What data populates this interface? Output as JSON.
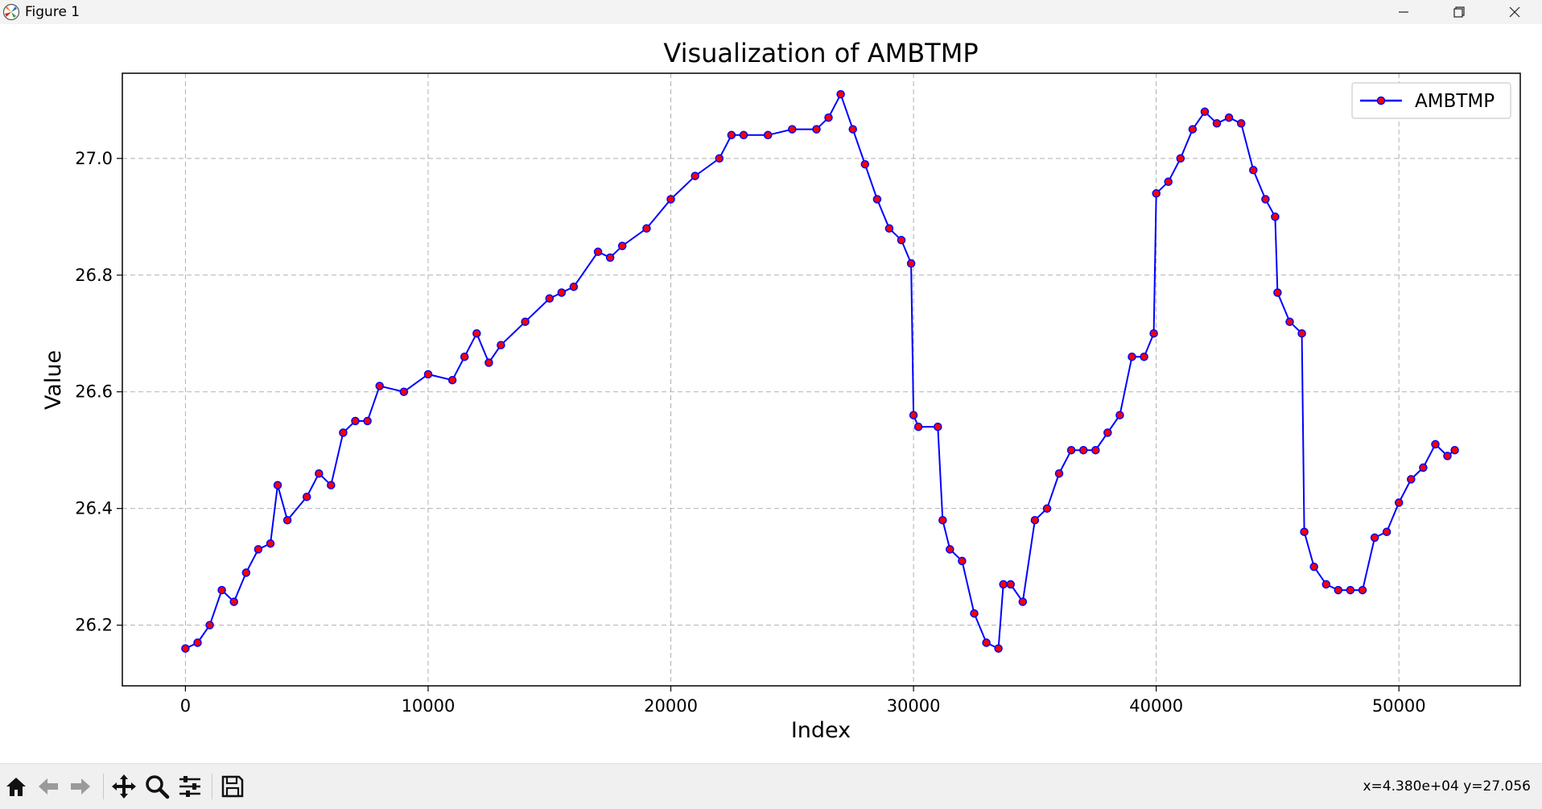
{
  "window": {
    "title": "Figure 1",
    "minimize_icon": "minimize-icon",
    "maximize_icon": "restore-icon",
    "close_icon": "close-icon"
  },
  "toolbar": {
    "buttons": [
      "home-icon",
      "back-arrow-icon",
      "forward-arrow-icon",
      "pan-icon",
      "zoom-icon",
      "configure-subplots-icon",
      "save-icon"
    ],
    "coords": "x=4.380e+04 y=27.056"
  },
  "colors": {
    "line": "#0000ff",
    "marker_face": "#ff0000",
    "marker_edge": "#0000ff",
    "grid": "#b0b0b0"
  },
  "chart_data": {
    "type": "line",
    "title": "Visualization of AMBTMP",
    "xlabel": "Index",
    "ylabel": "Value",
    "xlim": [
      -2600,
      55000
    ],
    "ylim": [
      26.096,
      27.146
    ],
    "xticks": [
      0,
      10000,
      20000,
      30000,
      40000,
      50000
    ],
    "xtick_labels": [
      "0",
      "10000",
      "20000",
      "30000",
      "40000",
      "50000"
    ],
    "yticks": [
      26.2,
      26.4,
      26.6,
      26.8,
      27.0
    ],
    "ytick_labels": [
      "26.2",
      "26.4",
      "26.6",
      "26.8",
      "27.0"
    ],
    "grid": true,
    "legend": {
      "position": "top-right",
      "entries": [
        "AMBTMP"
      ]
    },
    "series": [
      {
        "name": "AMBTMP",
        "x": [
          0,
          500,
          1000,
          1500,
          2000,
          2500,
          3000,
          3500,
          3800,
          4200,
          5000,
          5500,
          6000,
          6500,
          7000,
          7500,
          8000,
          9000,
          10000,
          11000,
          11500,
          12000,
          12500,
          13000,
          14000,
          15000,
          15500,
          16000,
          17000,
          17500,
          18000,
          19000,
          20000,
          21000,
          22000,
          22500,
          23000,
          24000,
          25000,
          26000,
          26500,
          27000,
          27500,
          28000,
          28500,
          29000,
          29500,
          29900,
          30000,
          30200,
          31000,
          31200,
          31500,
          32000,
          32500,
          33000,
          33500,
          33700,
          34000,
          34500,
          35000,
          35500,
          36000,
          36500,
          37000,
          37500,
          38000,
          38500,
          39000,
          39500,
          39900,
          40000,
          40500,
          41000,
          41500,
          42000,
          42500,
          43000,
          43500,
          44000,
          44500,
          44900,
          45000,
          45500,
          46000,
          46100,
          46500,
          47000,
          47500,
          48000,
          48500,
          49000,
          49500,
          50000,
          50500,
          51000,
          51500,
          52000,
          52300
        ],
        "y": [
          26.16,
          26.17,
          26.2,
          26.26,
          26.24,
          26.29,
          26.33,
          26.34,
          26.44,
          26.38,
          26.42,
          26.46,
          26.44,
          26.53,
          26.55,
          26.55,
          26.61,
          26.6,
          26.63,
          26.62,
          26.66,
          26.7,
          26.65,
          26.68,
          26.72,
          26.76,
          26.77,
          26.78,
          26.84,
          26.83,
          26.85,
          26.88,
          26.93,
          26.97,
          27.0,
          27.04,
          27.04,
          27.04,
          27.05,
          27.05,
          27.07,
          27.11,
          27.05,
          26.99,
          26.93,
          26.88,
          26.86,
          26.82,
          26.56,
          26.54,
          26.54,
          26.38,
          26.33,
          26.31,
          26.22,
          26.17,
          26.16,
          26.27,
          26.27,
          26.24,
          26.38,
          26.4,
          26.46,
          26.5,
          26.5,
          26.5,
          26.53,
          26.56,
          26.66,
          26.66,
          26.7,
          26.94,
          26.96,
          27.0,
          27.05,
          27.08,
          27.06,
          27.07,
          27.06,
          26.98,
          26.93,
          26.9,
          26.77,
          26.72,
          26.7,
          26.36,
          26.3,
          26.27,
          26.26,
          26.26,
          26.26,
          26.35,
          26.36,
          26.41,
          26.45,
          26.47,
          26.51,
          26.49,
          26.5
        ]
      }
    ]
  }
}
